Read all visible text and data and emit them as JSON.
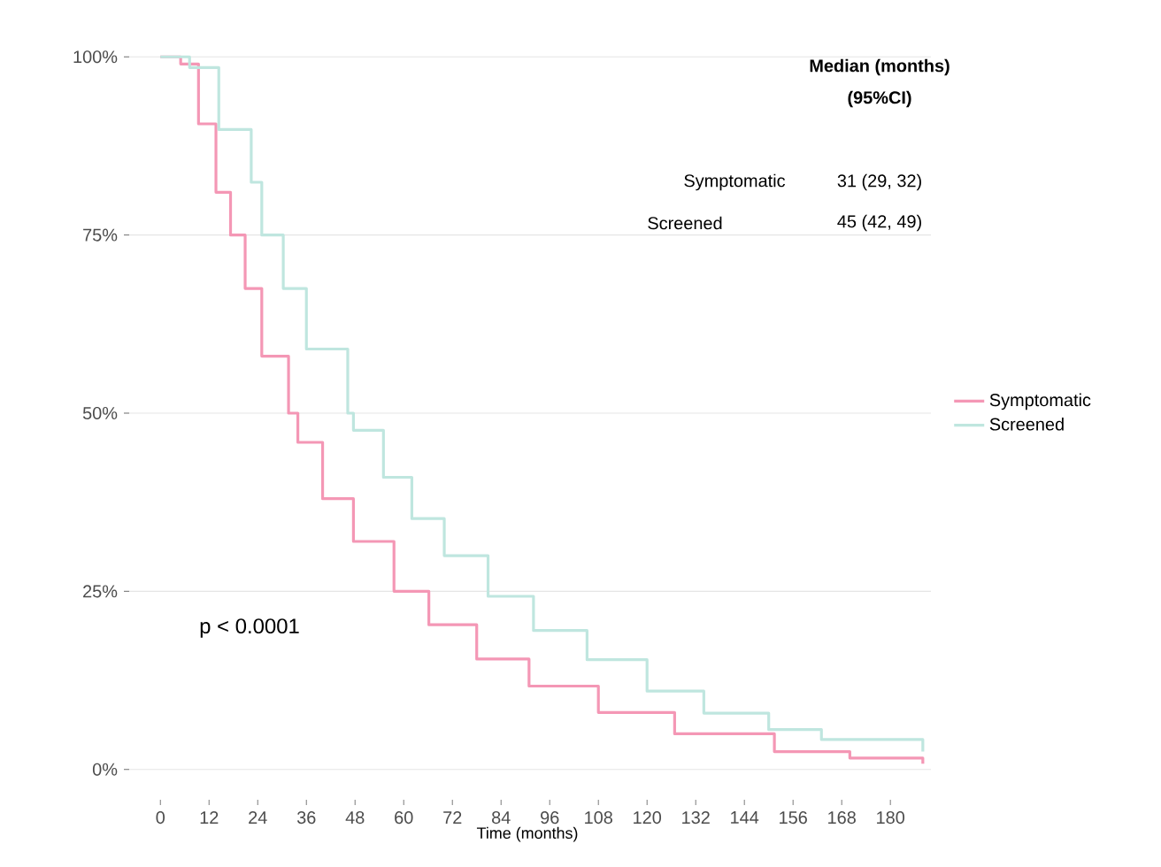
{
  "chart_data": {
    "type": "step",
    "xlabel": "Time (months)",
    "xlim": [
      -9,
      190
    ],
    "xticks": [
      0,
      12,
      24,
      36,
      48,
      60,
      72,
      84,
      96,
      108,
      120,
      132,
      144,
      156,
      168,
      180
    ],
    "ylim": [
      0,
      100
    ],
    "yticks": [
      {
        "value": 0,
        "label": "0%"
      },
      {
        "value": 25,
        "label": "25%"
      },
      {
        "value": 50,
        "label": "50%"
      },
      {
        "value": 75,
        "label": "75%"
      },
      {
        "value": 100,
        "label": "100%"
      }
    ],
    "grid": "y",
    "legend": "right",
    "line_style": "solid",
    "series": [
      {
        "name": "Symptomatic",
        "color": "#f497b5",
        "x": [
          0,
          4,
          5,
          9.4,
          13.7,
          17.3,
          20.9,
          25,
          31.6,
          33.9,
          40,
          47.6,
          57.6,
          66.2,
          78,
          90.9,
          108,
          126.8,
          151.4,
          170,
          188
        ],
        "values": [
          100,
          100,
          99,
          90.6,
          81,
          75,
          67.5,
          58,
          50,
          45.9,
          38,
          32,
          25,
          20.3,
          15.5,
          11.7,
          8,
          5,
          2.5,
          1.6,
          0.8
        ]
      },
      {
        "name": "Screened",
        "color": "#bfe6df",
        "x": [
          0,
          5,
          7.2,
          14.4,
          22.4,
          25,
          30.3,
          36,
          46.2,
          47.6,
          55,
          62,
          70,
          80.8,
          92,
          105.2,
          120,
          134,
          150,
          163,
          188
        ],
        "values": [
          100,
          100,
          98.5,
          89.8,
          82.4,
          75,
          67.5,
          59,
          50,
          47.6,
          41,
          35.2,
          30,
          24.3,
          19.5,
          15.4,
          11,
          7.9,
          5.6,
          4.2,
          2.5
        ]
      }
    ],
    "annotations": [
      "Median (months)",
      "(95%CI)",
      "Symptomatic",
      "31 (29, 32)",
      "Screened",
      "45 (42, 49)",
      "p < 0.0001"
    ]
  }
}
